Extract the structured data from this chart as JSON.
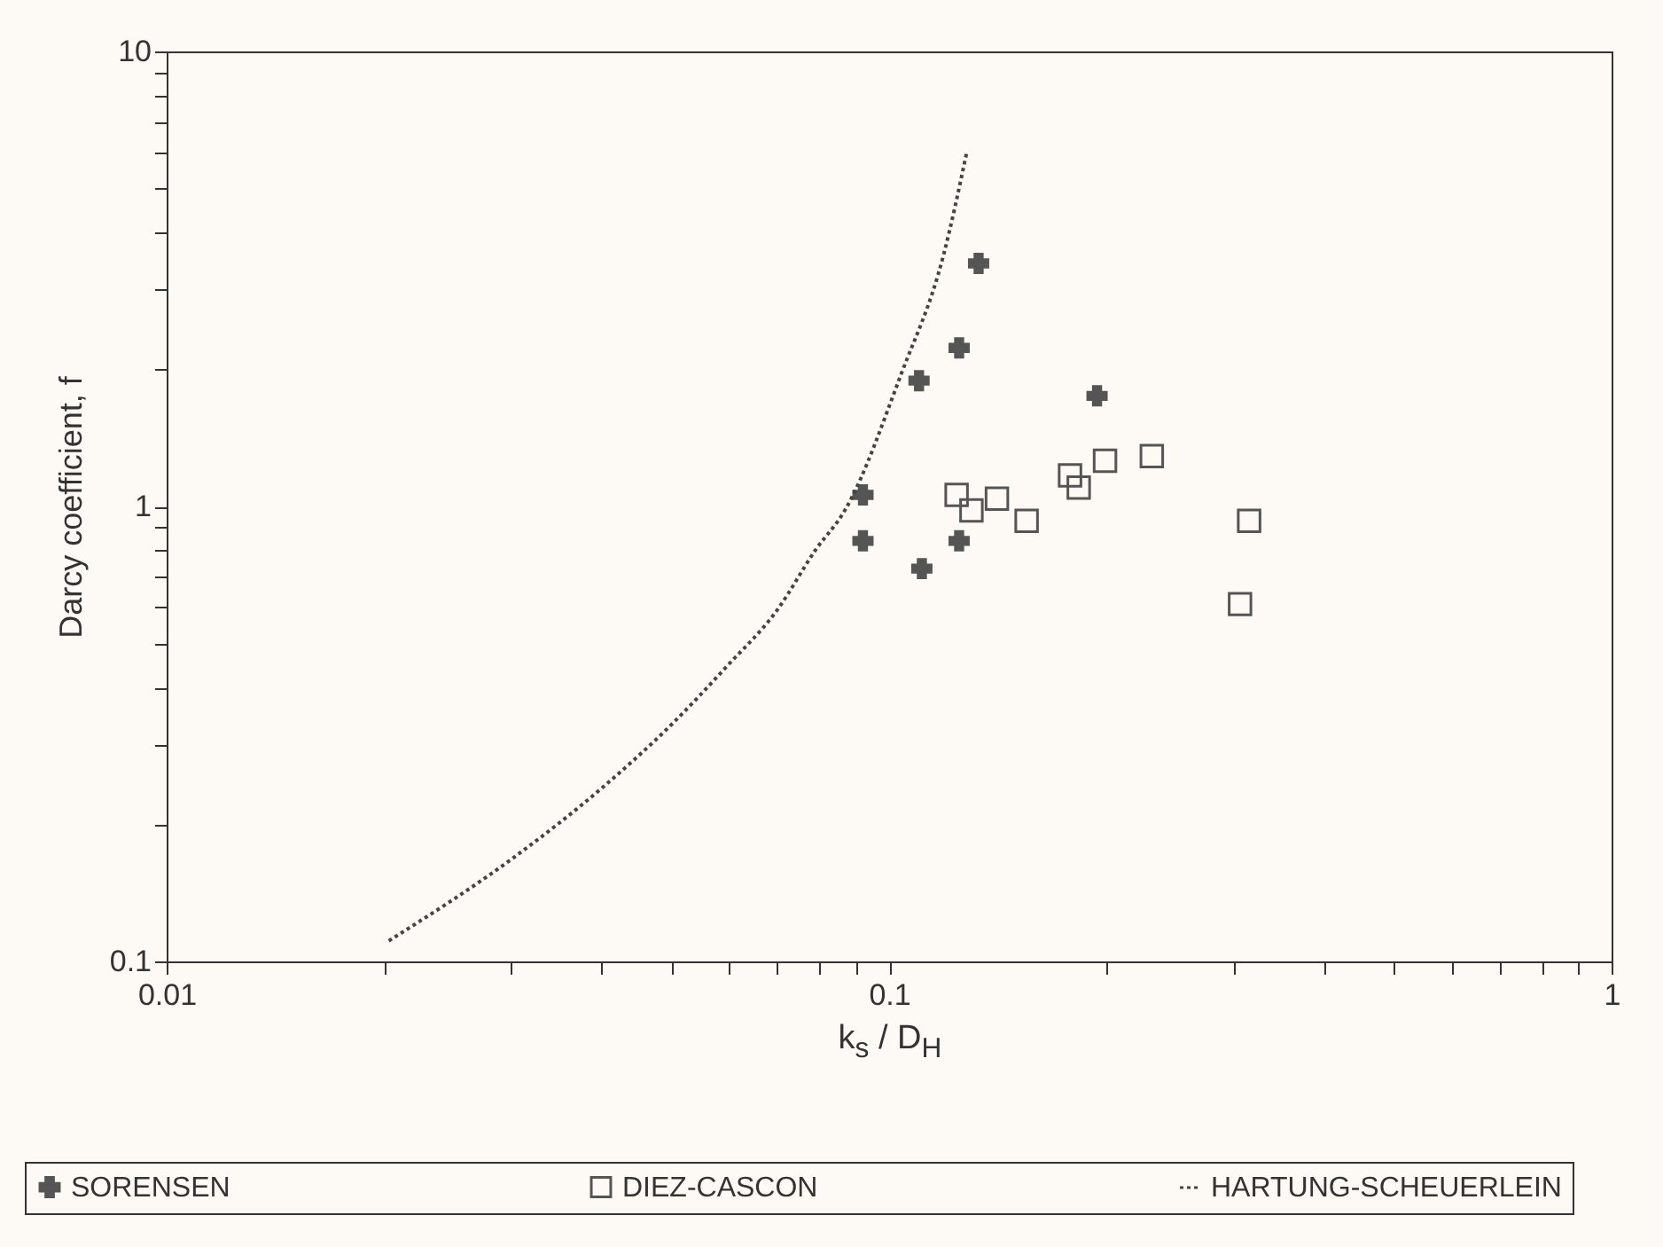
{
  "chart_data": {
    "type": "scatter",
    "xlabel": "k$_{s}$ / D$_{H}$",
    "ylabel": "Darcy coefficient, f",
    "log": "xy",
    "grid": false,
    "legend": "bottom",
    "xlim": [
      0.01,
      1
    ],
    "ylim": [
      0.1,
      10
    ],
    "xticks": [
      0.01,
      {
        "value": 0.02,
        "label": null
      },
      {
        "value": 0.03,
        "label": null
      },
      {
        "value": 0.04,
        "label": null
      },
      {
        "value": 0.05,
        "label": null
      },
      {
        "value": 0.06,
        "label": null
      },
      {
        "value": 0.07,
        "label": null
      },
      {
        "value": 0.08,
        "label": null
      },
      {
        "value": 0.09,
        "label": null
      },
      0.1,
      {
        "value": 0.2,
        "label": null
      },
      {
        "value": 0.3,
        "label": null
      },
      {
        "value": 0.4,
        "label": null
      },
      {
        "value": 0.5,
        "label": null
      },
      {
        "value": 0.6,
        "label": null
      },
      {
        "value": 0.7,
        "label": null
      },
      {
        "value": 0.8,
        "label": null
      },
      {
        "value": 0.9,
        "label": null
      },
      1
    ],
    "yticks": [
      0.1,
      {
        "value": 0.2,
        "label": null
      },
      {
        "value": 0.3,
        "label": null
      },
      {
        "value": 0.4,
        "label": null
      },
      {
        "value": 0.5,
        "label": null
      },
      {
        "value": 0.6,
        "label": null
      },
      {
        "value": 0.7,
        "label": null
      },
      {
        "value": 0.8,
        "label": null
      },
      {
        "value": 0.9,
        "label": null
      },
      1,
      {
        "value": 2,
        "label": null
      },
      {
        "value": 3,
        "label": null
      },
      {
        "value": 4,
        "label": null
      },
      {
        "value": 5,
        "label": null
      },
      {
        "value": 6,
        "label": null
      },
      {
        "value": 7,
        "label": null
      },
      {
        "value": 8,
        "label": null
      },
      {
        "value": 9,
        "label": null
      },
      10
    ],
    "series": [
      {
        "name": "SORENSEN",
        "type": "scatter",
        "marker": "cross",
        "color": "#555555",
        "x": [
          0.133,
          0.125,
          0.11,
          0.194,
          0.092,
          0.092,
          0.125,
          0.111
        ],
        "values": [
          3.42,
          2.23,
          1.89,
          1.75,
          1.06,
          0.84,
          0.84,
          0.73
        ]
      },
      {
        "name": "DIEZ-CASCON",
        "type": "scatter",
        "marker": "square",
        "color": "#555555",
        "x": [
          0.124,
          0.13,
          0.141,
          0.155,
          0.178,
          0.183,
          0.199,
          0.231,
          0.315,
          0.306
        ],
        "values": [
          1.06,
          0.98,
          1.04,
          0.93,
          1.17,
          1.1,
          1.26,
          1.29,
          0.93,
          0.61
        ]
      },
      {
        "name": "HARTUNG-SCHEUERLEIN",
        "type": "line",
        "line_style": "dotted",
        "color": "#444444",
        "x": [
          0.0203,
          0.0302,
          0.0401,
          0.0503,
          0.0596,
          0.07,
          0.079,
          0.087,
          0.104,
          0.119,
          0.128
        ],
        "values": [
          0.111,
          0.169,
          0.241,
          0.335,
          0.445,
          0.592,
          0.8,
          0.985,
          1.96,
          3.58,
          5.98
        ]
      }
    ]
  }
}
